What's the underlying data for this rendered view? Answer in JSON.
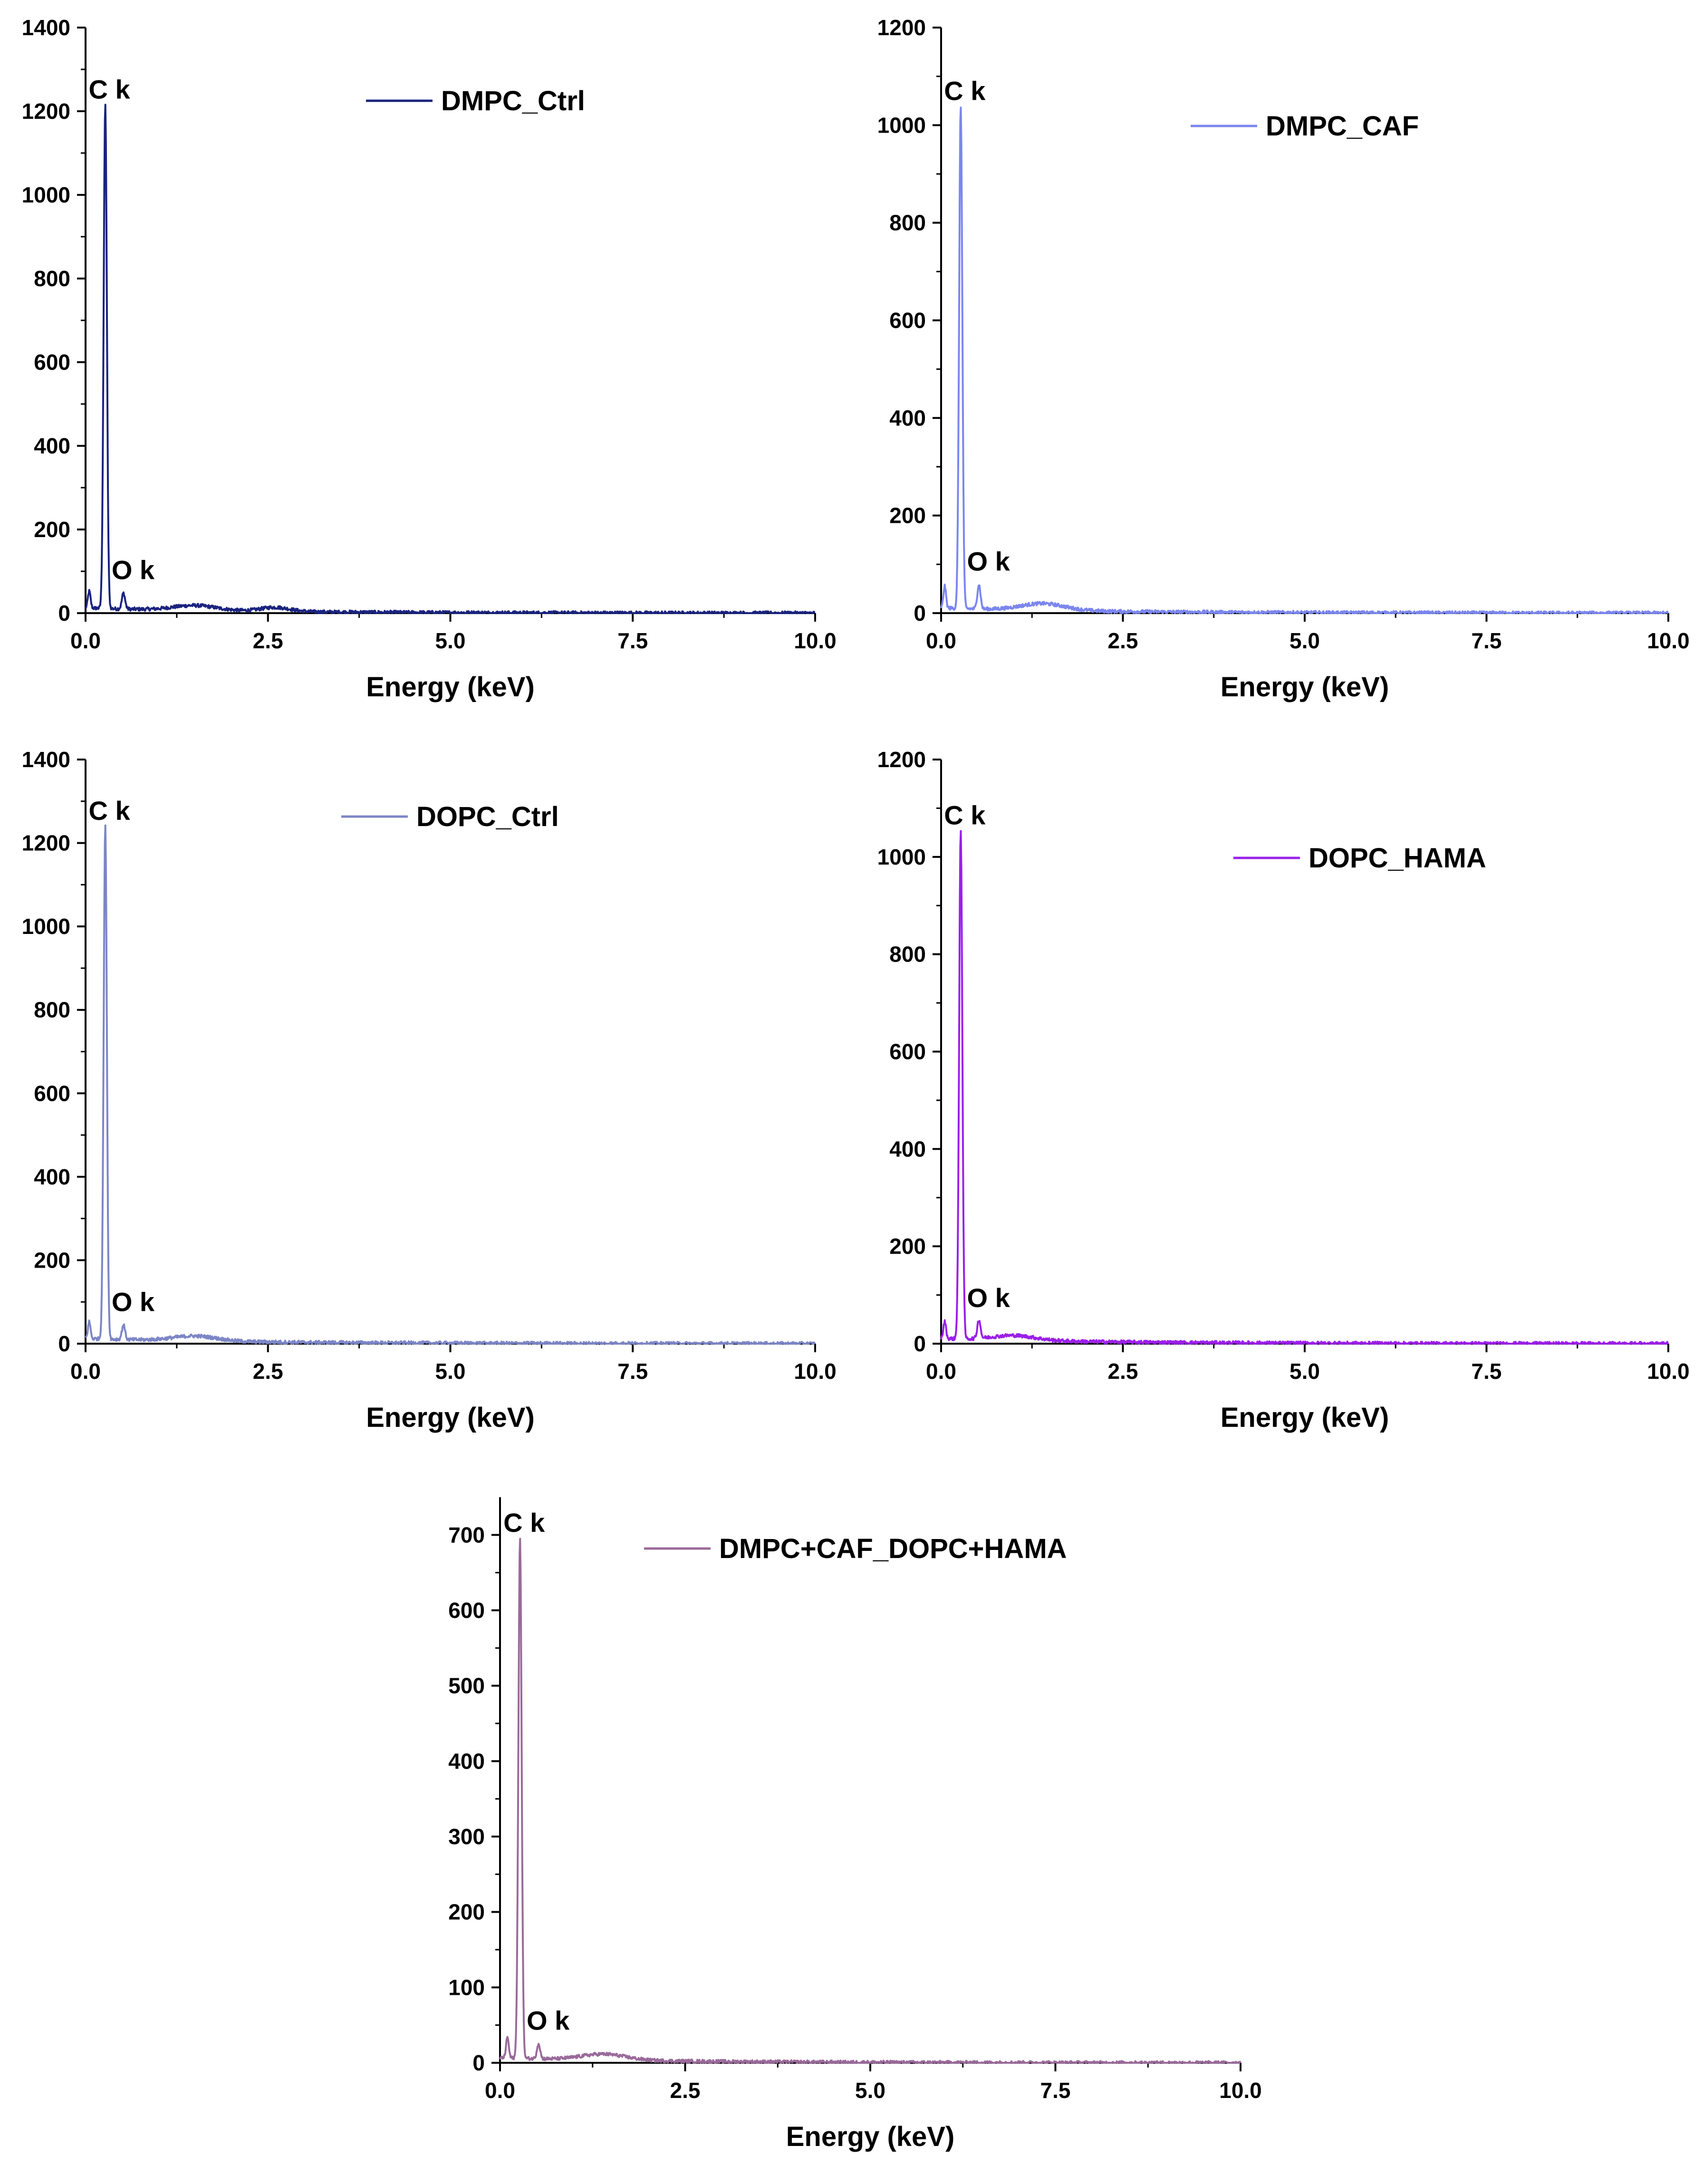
{
  "chart_data": [
    {
      "type": "line",
      "series": [
        {
          "name": "DMPC_Ctrl",
          "color": "#1a237e",
          "peaks": [
            {
              "x": 0.05,
              "y": 40
            },
            {
              "x": 0.27,
              "y": 1205
            },
            {
              "x": 0.52,
              "y": 38
            },
            {
              "x": 1.5,
              "y": 12
            },
            {
              "x": 2.6,
              "y": 10
            }
          ]
        }
      ],
      "xlabel": "Energy (keV)",
      "ylabel": "",
      "xlim": [
        0,
        10
      ],
      "ylim": [
        0,
        1400
      ],
      "xticks": [
        "0.0",
        "2.5",
        "5.0",
        "7.5",
        "10.0"
      ],
      "xtick_values": [
        0,
        2.5,
        5,
        7.5,
        10
      ],
      "yticks": [
        "0",
        "200",
        "400",
        "600",
        "800",
        "1000",
        "1200",
        "1400"
      ],
      "ytick_values": [
        0,
        200,
        400,
        600,
        800,
        1000,
        1200,
        1400
      ],
      "annotations": [
        {
          "text": "C k",
          "x": 0.27,
          "y": 1205
        },
        {
          "text": "O k",
          "x": 0.52,
          "y": 38
        }
      ],
      "legend": "top-center"
    },
    {
      "type": "line",
      "series": [
        {
          "name": "DMPC_CAF",
          "color": "#7b86ee",
          "peaks": [
            {
              "x": 0.05,
              "y": 45
            },
            {
              "x": 0.27,
              "y": 1030
            },
            {
              "x": 0.52,
              "y": 50
            },
            {
              "x": 1.4,
              "y": 14
            }
          ]
        }
      ],
      "xlabel": "Energy (keV)",
      "ylabel": "",
      "xlim": [
        0,
        10
      ],
      "ylim": [
        0,
        1200
      ],
      "xticks": [
        "0.0",
        "2.5",
        "5.0",
        "7.5",
        "10.0"
      ],
      "xtick_values": [
        0,
        2.5,
        5,
        7.5,
        10
      ],
      "yticks": [
        "0",
        "200",
        "400",
        "600",
        "800",
        "1000",
        "1200"
      ],
      "ytick_values": [
        0,
        200,
        400,
        600,
        800,
        1000,
        1200
      ],
      "annotations": [
        {
          "text": "C k",
          "x": 0.27,
          "y": 1030
        },
        {
          "text": "O k",
          "x": 0.52,
          "y": 50
        }
      ],
      "legend": "top-center"
    },
    {
      "type": "line",
      "series": [
        {
          "name": "DOPC_Ctrl",
          "color": "#7c86c6",
          "peaks": [
            {
              "x": 0.05,
              "y": 40
            },
            {
              "x": 0.27,
              "y": 1230
            },
            {
              "x": 0.52,
              "y": 35
            },
            {
              "x": 1.5,
              "y": 12
            }
          ]
        }
      ],
      "xlabel": "Energy (keV)",
      "ylabel": "",
      "xlim": [
        0,
        10
      ],
      "ylim": [
        0,
        1400
      ],
      "xticks": [
        "0.0",
        "2.5",
        "5.0",
        "7.5",
        "10.0"
      ],
      "xtick_values": [
        0,
        2.5,
        5,
        7.5,
        10
      ],
      "yticks": [
        "0",
        "200",
        "400",
        "600",
        "800",
        "1000",
        "1200",
        "1400"
      ],
      "ytick_values": [
        0,
        200,
        400,
        600,
        800,
        1000,
        1200,
        1400
      ],
      "annotations": [
        {
          "text": "C k",
          "x": 0.27,
          "y": 1230
        },
        {
          "text": "O k",
          "x": 0.52,
          "y": 35
        }
      ],
      "legend": "top-center"
    },
    {
      "type": "line",
      "series": [
        {
          "name": "DOPC_HAMA",
          "color": "#9b1fe8",
          "peaks": [
            {
              "x": 0.05,
              "y": 35
            },
            {
              "x": 0.27,
              "y": 1045
            },
            {
              "x": 0.52,
              "y": 38
            },
            {
              "x": 1.0,
              "y": 10
            }
          ]
        }
      ],
      "xlabel": "Energy (keV)",
      "ylabel": "",
      "xlim": [
        0,
        10
      ],
      "ylim": [
        0,
        1200
      ],
      "xticks": [
        "0.0",
        "2.5",
        "5.0",
        "7.5",
        "10.0"
      ],
      "xtick_values": [
        0,
        2.5,
        5,
        7.5,
        10
      ],
      "yticks": [
        "0",
        "200",
        "400",
        "600",
        "800",
        "1000",
        "1200"
      ],
      "ytick_values": [
        0,
        200,
        400,
        600,
        800,
        1000,
        1200
      ],
      "annotations": [
        {
          "text": "C k",
          "x": 0.27,
          "y": 1045
        },
        {
          "text": "O k",
          "x": 0.52,
          "y": 38
        }
      ],
      "legend": "top-center"
    },
    {
      "type": "line",
      "series": [
        {
          "name": "DMPC+CAF_DOPC+HAMA",
          "color": "#9a6a9a",
          "peaks": [
            {
              "x": 0.1,
              "y": 28
            },
            {
              "x": 0.27,
              "y": 690
            },
            {
              "x": 0.52,
              "y": 20
            },
            {
              "x": 1.4,
              "y": 8
            }
          ]
        }
      ],
      "xlabel": "Energy (keV)",
      "ylabel": "",
      "xlim": [
        0,
        10
      ],
      "ylim": [
        0,
        750
      ],
      "xticks": [
        "0.0",
        "2.5",
        "5.0",
        "7.5",
        "10.0"
      ],
      "xtick_values": [
        0,
        2.5,
        5,
        7.5,
        10
      ],
      "yticks": [
        "0",
        "100",
        "200",
        "300",
        "400",
        "500",
        "600",
        "700"
      ],
      "ytick_values": [
        0,
        100,
        200,
        300,
        400,
        500,
        600,
        700
      ],
      "annotations": [
        {
          "text": "C k",
          "x": 0.27,
          "y": 690
        },
        {
          "text": "O k",
          "x": 0.52,
          "y": 20
        }
      ],
      "legend": "top-center"
    }
  ]
}
